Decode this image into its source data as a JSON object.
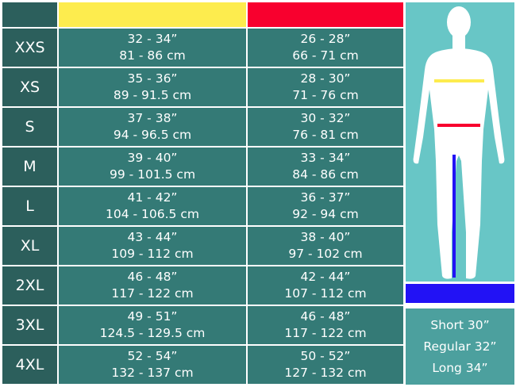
{
  "colors": {
    "chest": "#fdec4e",
    "waist": "#f8002e",
    "inseam": "#2212f5"
  },
  "rows": [
    {
      "size": "XXS",
      "chest_in": "32 - 34”",
      "chest_cm": "81 - 86 cm",
      "waist_in": "26 - 28”",
      "waist_cm": "66 - 71 cm"
    },
    {
      "size": "XS",
      "chest_in": "35 - 36”",
      "chest_cm": "89 - 91.5 cm",
      "waist_in": "28 - 30”",
      "waist_cm": "71 - 76 cm"
    },
    {
      "size": "S",
      "chest_in": "37 - 38”",
      "chest_cm": "94 - 96.5 cm",
      "waist_in": "30 - 32”",
      "waist_cm": "76 - 81 cm"
    },
    {
      "size": "M",
      "chest_in": "39 - 40”",
      "chest_cm": "99 - 101.5 cm",
      "waist_in": "33 - 34”",
      "waist_cm": "84 - 86 cm"
    },
    {
      "size": "L",
      "chest_in": "41 - 42”",
      "chest_cm": "104 - 106.5 cm",
      "waist_in": "36 - 37”",
      "waist_cm": "92 - 94 cm"
    },
    {
      "size": "XL",
      "chest_in": "43 - 44”",
      "chest_cm": "109 - 112 cm",
      "waist_in": "38 - 40”",
      "waist_cm": "97 - 102 cm"
    },
    {
      "size": "2XL",
      "chest_in": "46 - 48”",
      "chest_cm": "117 - 122 cm",
      "waist_in": "42 - 44”",
      "waist_cm": "107 - 112 cm"
    },
    {
      "size": "3XL",
      "chest_in": "49 - 51”",
      "chest_cm": "124.5 - 129.5 cm",
      "waist_in": "46 - 48”",
      "waist_cm": "117 - 122 cm"
    },
    {
      "size": "4XL",
      "chest_in": "52 - 54”",
      "chest_cm": "132 - 137 cm",
      "waist_in": "50 - 52”",
      "waist_cm": "127 - 132 cm"
    }
  ],
  "lengths": [
    "Short 30”",
    "Regular 32”",
    "Long 34”"
  ]
}
